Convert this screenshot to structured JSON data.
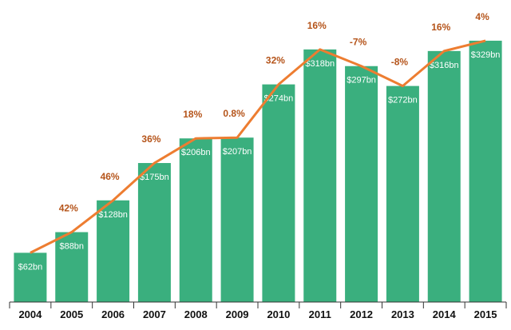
{
  "chart_data": {
    "type": "bar",
    "title": "",
    "xlabel": "",
    "ylabel": "",
    "categories": [
      "2004",
      "2005",
      "2006",
      "2007",
      "2008",
      "2009",
      "2010",
      "2011",
      "2012",
      "2013",
      "2014",
      "2015"
    ],
    "series": [
      {
        "values": [
          62,
          88,
          128,
          175,
          206,
          207,
          274,
          318,
          297,
          272,
          316,
          329
        ],
        "labels": [
          "$62bn",
          "$88bn",
          "$128bn",
          "$175bn",
          "$206bn",
          "$207bn",
          "$274bn",
          "$318bn",
          "$297bn",
          "$272bn",
          "$316bn",
          "$329bn"
        ]
      }
    ],
    "growth_series": {
      "type": "line",
      "values": [
        null,
        42,
        46,
        36,
        18,
        0.8,
        32,
        16,
        -7,
        -8,
        16,
        4
      ],
      "labels": [
        "",
        "42%",
        "46%",
        "36%",
        "18%",
        "0.8%",
        "32%",
        "16%",
        "-7%",
        "-8%",
        "16%",
        "4%"
      ]
    },
    "ylim": [
      0,
      340
    ],
    "grid": false,
    "colors": {
      "bar": "#3aaf7e",
      "line": "#ed7d31",
      "growth_label": "#b5541a",
      "axis": "#333333"
    }
  }
}
